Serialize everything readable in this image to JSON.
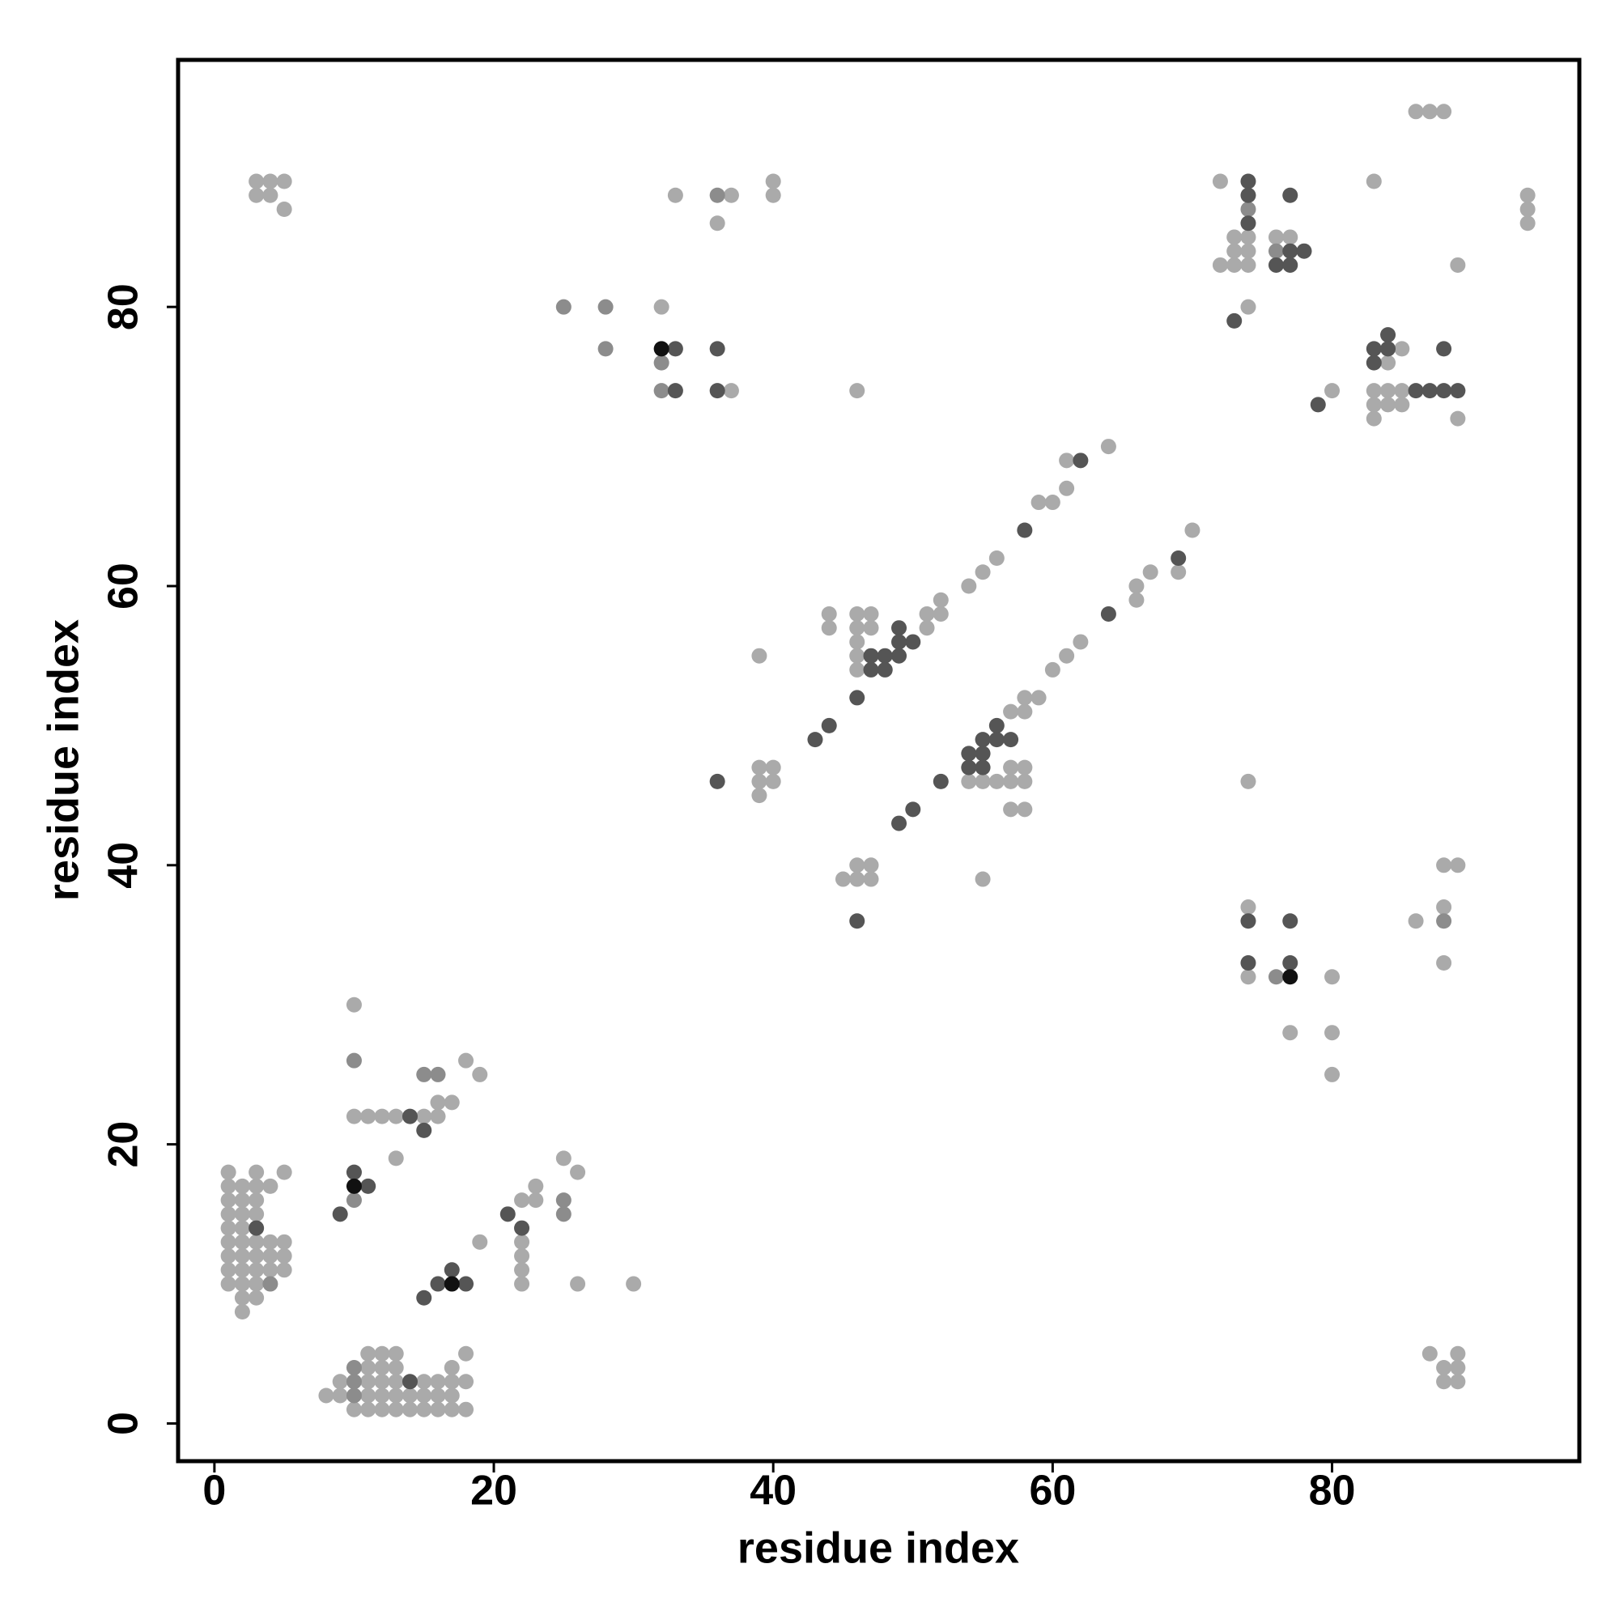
{
  "chart_data": {
    "type": "scatter",
    "xlabel": "residue index",
    "ylabel": "residue index",
    "xlim": [
      -2.6,
      97.7
    ],
    "ylim": [
      -2.7,
      97.7
    ],
    "xticks": [
      0,
      20,
      40,
      60,
      80
    ],
    "yticks": [
      0,
      20,
      40,
      60,
      80
    ],
    "grid": false,
    "series": [
      {
        "color": "#aaaaaa",
        "x": [
          3,
          4,
          5,
          3,
          4,
          5,
          33,
          37,
          36,
          40,
          40,
          32,
          37,
          46,
          72,
          72,
          73,
          73,
          73,
          74,
          74,
          74,
          74,
          76,
          77,
          80,
          83,
          83,
          83,
          83,
          84,
          84,
          84,
          85,
          85,
          85,
          89,
          89,
          86,
          87,
          88,
          94,
          94,
          94,
          61,
          64,
          59,
          60,
          61,
          70,
          69,
          67,
          66,
          66,
          62,
          61,
          60,
          59,
          58,
          58,
          57,
          54,
          55,
          56,
          52,
          52,
          51,
          51,
          46,
          46,
          46,
          46,
          46,
          47,
          47,
          44,
          44,
          39,
          39,
          40,
          39,
          40,
          39,
          54,
          55,
          56,
          57,
          58,
          57,
          58,
          57,
          58,
          55,
          45,
          46,
          47,
          46,
          47,
          74,
          74,
          74,
          77,
          80,
          80,
          80,
          86,
          88,
          89,
          88,
          88,
          87,
          88,
          89,
          89,
          88,
          89,
          1,
          1,
          1,
          1,
          1,
          1,
          1,
          1,
          1,
          2,
          2,
          2,
          2,
          2,
          2,
          2,
          2,
          2,
          2,
          3,
          3,
          3,
          3,
          3,
          3,
          3,
          3,
          3,
          4,
          4,
          4,
          4,
          5,
          5,
          5,
          5,
          10,
          10,
          11,
          12,
          13,
          15,
          16,
          16,
          17,
          18,
          19,
          13,
          22,
          22,
          22,
          22,
          22,
          23,
          23,
          25,
          26,
          26,
          30,
          19,
          8,
          9,
          9,
          10,
          11,
          11,
          11,
          11,
          11,
          12,
          12,
          12,
          12,
          12,
          13,
          13,
          13,
          13,
          13,
          14,
          14,
          15,
          15,
          15,
          16,
          16,
          16,
          17,
          17,
          17,
          17,
          18,
          18,
          18
        ],
        "y": [
          89,
          89,
          89,
          88,
          88,
          87,
          88,
          88,
          86,
          89,
          88,
          80,
          74,
          74,
          89,
          83,
          85,
          84,
          83,
          85,
          84,
          83,
          80,
          85,
          85,
          74,
          89,
          74,
          73,
          72,
          76,
          74,
          73,
          77,
          74,
          73,
          72,
          83,
          94,
          94,
          94,
          88,
          87,
          86,
          69,
          70,
          66,
          66,
          67,
          64,
          61,
          61,
          60,
          59,
          56,
          55,
          54,
          52,
          52,
          51,
          51,
          60,
          61,
          62,
          59,
          58,
          58,
          57,
          58,
          57,
          56,
          55,
          54,
          58,
          57,
          58,
          57,
          55,
          47,
          47,
          46,
          46,
          45,
          46,
          46,
          46,
          46,
          46,
          47,
          47,
          44,
          44,
          39,
          39,
          39,
          39,
          40,
          40,
          46,
          37,
          32,
          28,
          32,
          28,
          25,
          36,
          40,
          40,
          37,
          33,
          5,
          4,
          5,
          4,
          3,
          3,
          10,
          11,
          12,
          13,
          14,
          15,
          16,
          17,
          18,
          8,
          9,
          10,
          11,
          12,
          13,
          14,
          15,
          16,
          17,
          9,
          10,
          11,
          12,
          13,
          15,
          16,
          17,
          18,
          11,
          12,
          13,
          17,
          11,
          12,
          13,
          18,
          30,
          22,
          22,
          22,
          22,
          22,
          22,
          23,
          23,
          26,
          25,
          19,
          16,
          13,
          12,
          11,
          10,
          17,
          16,
          19,
          18,
          10,
          10,
          13,
          2,
          3,
          2,
          1,
          1,
          2,
          3,
          4,
          5,
          1,
          2,
          3,
          4,
          5,
          1,
          2,
          3,
          4,
          5,
          1,
          2,
          1,
          2,
          3,
          1,
          2,
          3,
          1,
          2,
          3,
          4,
          1,
          3,
          5
        ]
      },
      {
        "color": "#8c8c8c",
        "x": [
          36,
          25,
          28,
          28,
          32,
          32,
          74,
          76,
          76,
          88,
          4,
          10,
          15,
          16,
          10,
          25,
          25,
          10,
          10,
          10
        ],
        "y": [
          88,
          80,
          80,
          77,
          76,
          74,
          87,
          84,
          32,
          36,
          10,
          26,
          25,
          25,
          16,
          16,
          15,
          4,
          3,
          2
        ]
      },
      {
        "color": "#555555",
        "x": [
          33,
          36,
          33,
          36,
          73,
          74,
          74,
          74,
          76,
          77,
          77,
          77,
          78,
          79,
          83,
          83,
          84,
          84,
          86,
          87,
          88,
          89,
          88,
          62,
          58,
          69,
          64,
          50,
          49,
          49,
          49,
          48,
          48,
          47,
          47,
          46,
          44,
          43,
          36,
          52,
          50,
          49,
          54,
          54,
          55,
          55,
          55,
          56,
          56,
          57,
          46,
          74,
          74,
          77,
          77,
          3,
          14,
          15,
          10,
          11,
          9,
          21,
          22,
          15,
          16,
          17,
          18,
          14
        ],
        "y": [
          77,
          77,
          74,
          74,
          79,
          89,
          88,
          86,
          83,
          88,
          84,
          83,
          84,
          73,
          77,
          76,
          78,
          77,
          74,
          74,
          74,
          74,
          77,
          69,
          64,
          62,
          58,
          56,
          57,
          56,
          55,
          55,
          54,
          55,
          54,
          52,
          50,
          49,
          46,
          46,
          44,
          43,
          48,
          47,
          49,
          48,
          47,
          50,
          49,
          49,
          36,
          36,
          33,
          36,
          33,
          14,
          22,
          21,
          18,
          17,
          15,
          15,
          14,
          9,
          10,
          11,
          10,
          3
        ]
      },
      {
        "color": "#111111",
        "x": [
          32,
          77,
          10,
          17
        ],
        "y": [
          77,
          32,
          17,
          10
        ]
      }
    ]
  }
}
